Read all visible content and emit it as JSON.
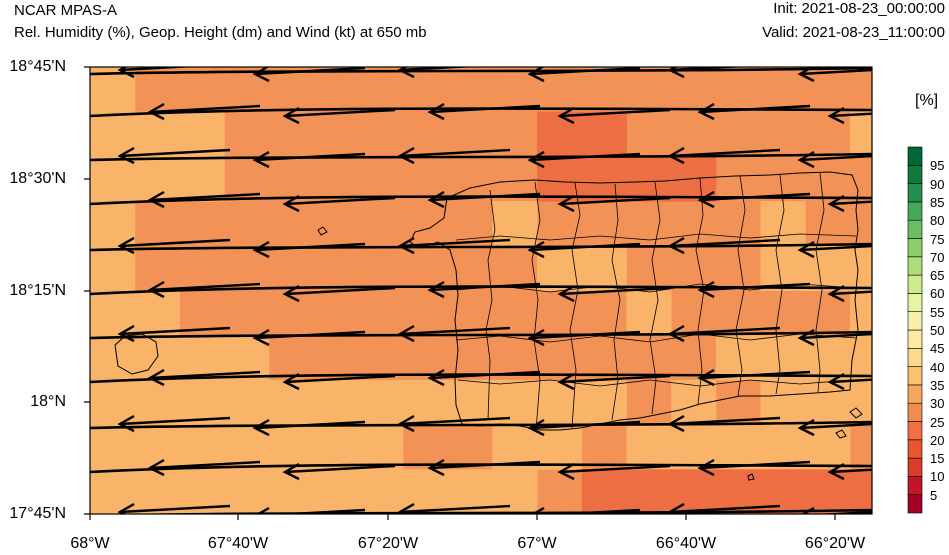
{
  "header": {
    "model": "NCAR MPAS-A",
    "field": "Rel. Humidity (%), Geop. Height (dm) and Wind (kt) at 650 mb",
    "init": "Init: 2021-08-23_00:00:00",
    "valid": "Valid: 2021-08-23_11:00:00"
  },
  "axes": {
    "lat_labels": [
      "18°45'N",
      "18°30'N",
      "18°15'N",
      "18°N",
      "17°45'N"
    ],
    "lon_labels": [
      "68°W",
      "67°40'W",
      "67°20'W",
      "67°W",
      "66°40'W",
      "66°20'W"
    ],
    "lat_range": [
      17.75,
      18.75
    ],
    "lon_range": [
      -68.0,
      -66.25
    ]
  },
  "colorbar": {
    "unit": "[%]",
    "levels": [
      "5",
      "10",
      "15",
      "20",
      "25",
      "30",
      "35",
      "40",
      "45",
      "50",
      "55",
      "60",
      "65",
      "70",
      "75",
      "80",
      "85",
      "90",
      "95"
    ],
    "colors": [
      "#a50026",
      "#c5142a",
      "#dc3b2c",
      "#e8562f",
      "#f07040",
      "#f28c4f",
      "#f7a75c",
      "#fcc06f",
      "#fdd98b",
      "#fee9a4",
      "#f4f1b0",
      "#e6f5a3",
      "#cdeb8b",
      "#addc7a",
      "#8ecd6b",
      "#6dbd62",
      "#48a85a",
      "#238f4c",
      "#0f7a3e",
      "#006837"
    ]
  },
  "field_colors": {
    "dominant_30_35": "#f39257",
    "light_35_40": "#f9b46a",
    "dark_25_30": "#ec6e42"
  },
  "wind": {
    "direction": "easterly"
  }
}
